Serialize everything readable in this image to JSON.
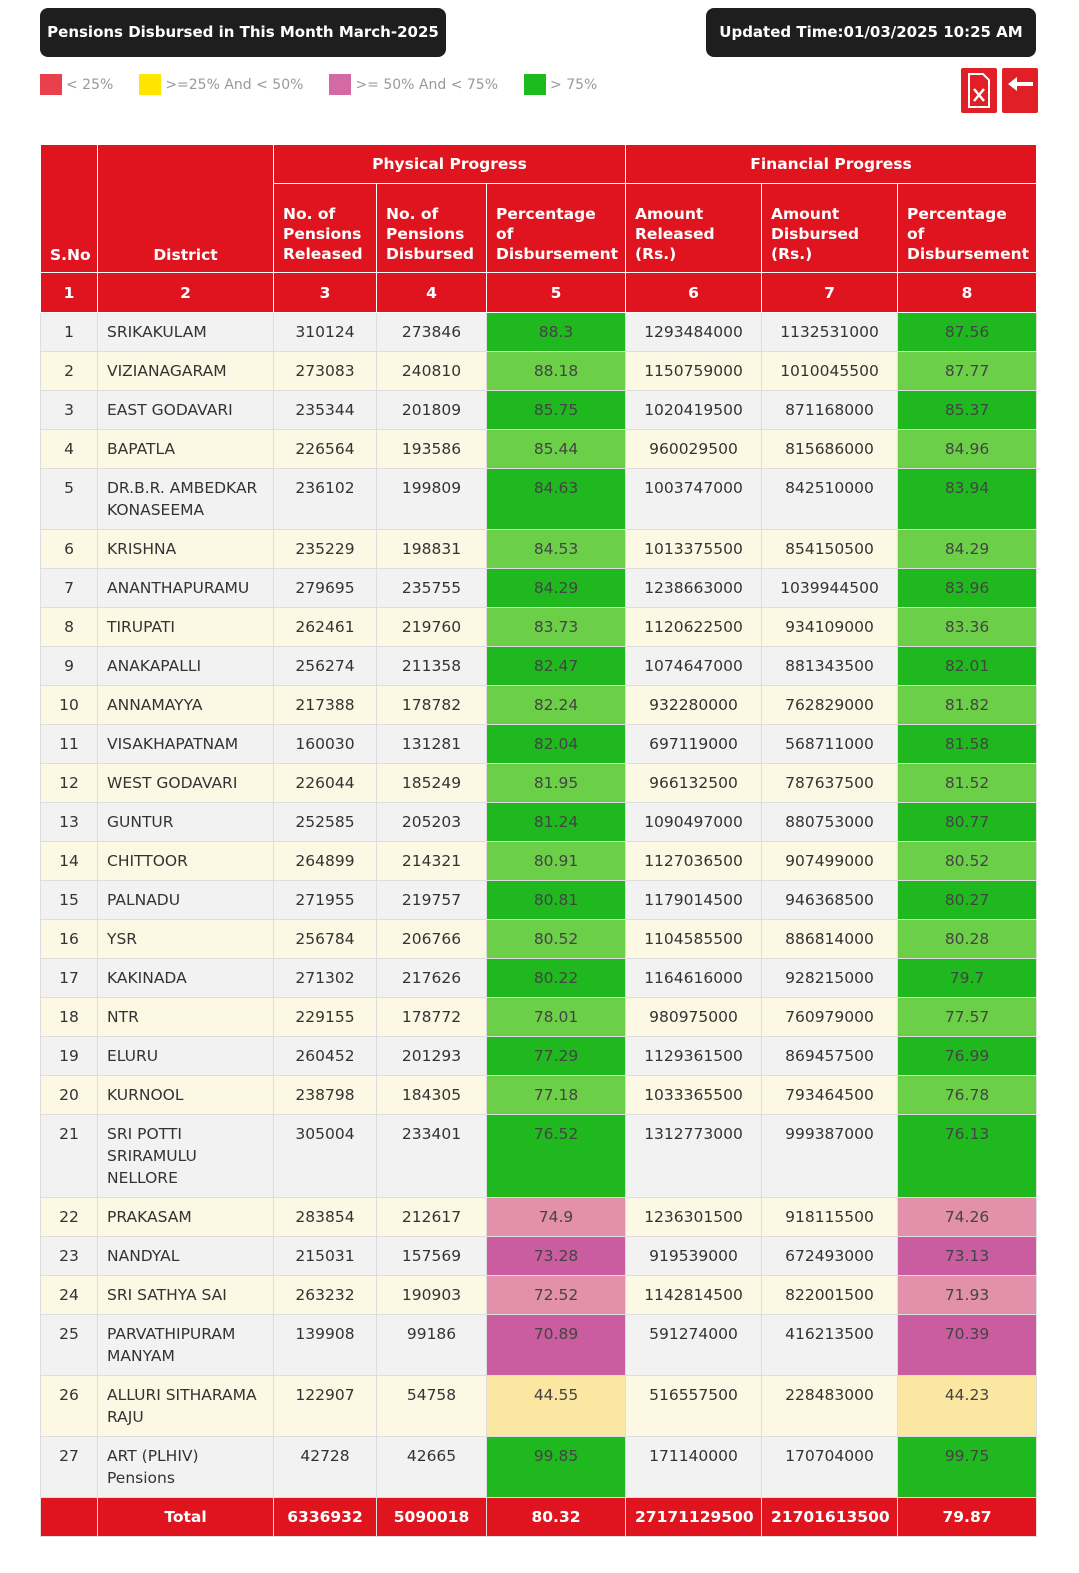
{
  "header": {
    "title": "Pensions Disbursed in This Month March-2025",
    "updated": "Updated Time:01/03/2025 10:25 AM"
  },
  "legend": [
    {
      "label": "< 25%",
      "color": "#e8414b"
    },
    {
      "label": ">=25% And < 50%",
      "color": "#ffe500"
    },
    {
      "label": ">= 50% And < 75%",
      "color": "#d36aa5"
    },
    {
      "label": "> 75%",
      "color": "#1dbb1d"
    }
  ],
  "table": {
    "groups": [
      "Physical Progress",
      "Financial Progress"
    ],
    "columns": [
      "S.No",
      "District",
      "No. of Pensions Released",
      "No. of Pensions Disbursed",
      "Percentage of Disbursement",
      "Amount Released (Rs.)",
      "Amount Disbursed (Rs.)",
      "Percentage of Disbursement"
    ],
    "column_numbers": [
      1,
      2,
      3,
      4,
      5,
      6,
      7,
      8
    ],
    "rows": [
      [
        1,
        "SRIKAKULAM",
        310124,
        273846,
        88.3,
        1293484000,
        1132531000,
        87.56
      ],
      [
        2,
        "VIZIANAGARAM",
        273083,
        240810,
        88.18,
        1150759000,
        1010045500,
        87.77
      ],
      [
        3,
        "EAST GODAVARI",
        235344,
        201809,
        85.75,
        1020419500,
        871168000,
        85.37
      ],
      [
        4,
        "BAPATLA",
        226564,
        193586,
        85.44,
        960029500,
        815686000,
        84.96
      ],
      [
        5,
        "DR.B.R. AMBEDKAR KONASEEMA",
        236102,
        199809,
        84.63,
        1003747000,
        842510000,
        83.94
      ],
      [
        6,
        "KRISHNA",
        235229,
        198831,
        84.53,
        1013375500,
        854150500,
        84.29
      ],
      [
        7,
        "ANANTHAPURAMU",
        279695,
        235755,
        84.29,
        1238663000,
        1039944500,
        83.96
      ],
      [
        8,
        "TIRUPATI",
        262461,
        219760,
        83.73,
        1120622500,
        934109000,
        83.36
      ],
      [
        9,
        "ANAKAPALLI",
        256274,
        211358,
        82.47,
        1074647000,
        881343500,
        82.01
      ],
      [
        10,
        "ANNAMAYYA",
        217388,
        178782,
        82.24,
        932280000,
        762829000,
        81.82
      ],
      [
        11,
        "VISAKHAPATNAM",
        160030,
        131281,
        82.04,
        697119000,
        568711000,
        81.58
      ],
      [
        12,
        "WEST GODAVARI",
        226044,
        185249,
        81.95,
        966132500,
        787637500,
        81.52
      ],
      [
        13,
        "GUNTUR",
        252585,
        205203,
        81.24,
        1090497000,
        880753000,
        80.77
      ],
      [
        14,
        "CHITTOOR",
        264899,
        214321,
        80.91,
        1127036500,
        907499000,
        80.52
      ],
      [
        15,
        "PALNADU",
        271955,
        219757,
        80.81,
        1179014500,
        946368500,
        80.27
      ],
      [
        16,
        "YSR",
        256784,
        206766,
        80.52,
        1104585500,
        886814000,
        80.28
      ],
      [
        17,
        "KAKINADA",
        271302,
        217626,
        80.22,
        1164616000,
        928215000,
        79.7
      ],
      [
        18,
        "NTR",
        229155,
        178772,
        78.01,
        980975000,
        760979000,
        77.57
      ],
      [
        19,
        "ELURU",
        260452,
        201293,
        77.29,
        1129361500,
        869457500,
        76.99
      ],
      [
        20,
        "KURNOOL",
        238798,
        184305,
        77.18,
        1033365500,
        793464500,
        76.78
      ],
      [
        21,
        "SRI POTTI SRIRAMULU NELLORE",
        305004,
        233401,
        76.52,
        1312773000,
        999387000,
        76.13
      ],
      [
        22,
        "PRAKASAM",
        283854,
        212617,
        74.9,
        1236301500,
        918115500,
        74.26
      ],
      [
        23,
        "NANDYAL",
        215031,
        157569,
        73.28,
        919539000,
        672493000,
        73.13
      ],
      [
        24,
        "SRI SATHYA SAI",
        263232,
        190903,
        72.52,
        1142814500,
        822001500,
        71.93
      ],
      [
        25,
        "PARVATHIPURAM MANYAM",
        139908,
        99186,
        70.89,
        591274000,
        416213500,
        70.39
      ],
      [
        26,
        "ALLURI SITHARAMA RAJU",
        122907,
        54758,
        44.55,
        516557500,
        228483000,
        44.23
      ],
      [
        27,
        "ART (PLHIV) Pensions",
        42728,
        42665,
        99.85,
        171140000,
        170704000,
        99.75
      ]
    ],
    "cell_colors": [
      [
        "#1fb91f",
        "#1fb91f"
      ],
      [
        "#6ccf48",
        "#6ccf48"
      ],
      [
        "#1fb91f",
        "#1fb91f"
      ],
      [
        "#6ccf48",
        "#6ccf48"
      ],
      [
        "#1fb91f",
        "#1fb91f"
      ],
      [
        "#6ccf48",
        "#6ccf48"
      ],
      [
        "#1fb91f",
        "#1fb91f"
      ],
      [
        "#6ccf48",
        "#6ccf48"
      ],
      [
        "#1fb91f",
        "#1fb91f"
      ],
      [
        "#6ccf48",
        "#6ccf48"
      ],
      [
        "#1fb91f",
        "#1fb91f"
      ],
      [
        "#6ccf48",
        "#6ccf48"
      ],
      [
        "#1fb91f",
        "#1fb91f"
      ],
      [
        "#6ccf48",
        "#6ccf48"
      ],
      [
        "#1fb91f",
        "#1fb91f"
      ],
      [
        "#6ccf48",
        "#6ccf48"
      ],
      [
        "#1fb91f",
        "#1fb91f"
      ],
      [
        "#6ccf48",
        "#6ccf48"
      ],
      [
        "#1fb91f",
        "#1fb91f"
      ],
      [
        "#6ccf48",
        "#6ccf48"
      ],
      [
        "#1fb91f",
        "#1fb91f"
      ],
      [
        "#e391aa",
        "#e391aa"
      ],
      [
        "#c95d9f",
        "#c95d9f"
      ],
      [
        "#e391aa",
        "#e391aa"
      ],
      [
        "#c95d9f",
        "#c95d9f"
      ],
      [
        "#fbe7a1",
        "#fbe7a1"
      ],
      [
        "#1fb91f",
        "#1fb91f"
      ]
    ],
    "total": [
      "Total",
      6336932,
      5090018,
      80.32,
      27171129500,
      21701613500,
      79.87
    ]
  }
}
